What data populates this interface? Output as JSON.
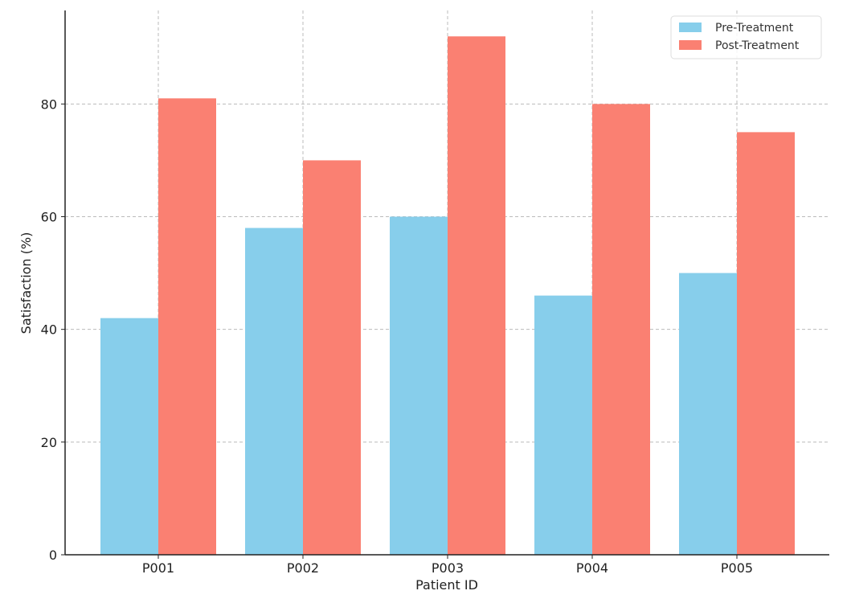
{
  "chart_data": {
    "type": "bar",
    "title": "",
    "xlabel": "Patient ID",
    "ylabel": "Satisfaction (%)",
    "categories": [
      "P001",
      "P002",
      "P003",
      "P004",
      "P005"
    ],
    "series": [
      {
        "name": "Pre-Treatment",
        "values": [
          42,
          58,
          60,
          46,
          50
        ],
        "color": "#87CEEB"
      },
      {
        "name": "Post-Treatment",
        "values": [
          81,
          70,
          92,
          80,
          75
        ],
        "color": "#FA8072"
      }
    ],
    "yticks": [
      "0",
      "20",
      "40",
      "60",
      "80"
    ],
    "ylim": [
      0,
      96.6
    ],
    "grid": true,
    "legend_position": "top-right"
  }
}
